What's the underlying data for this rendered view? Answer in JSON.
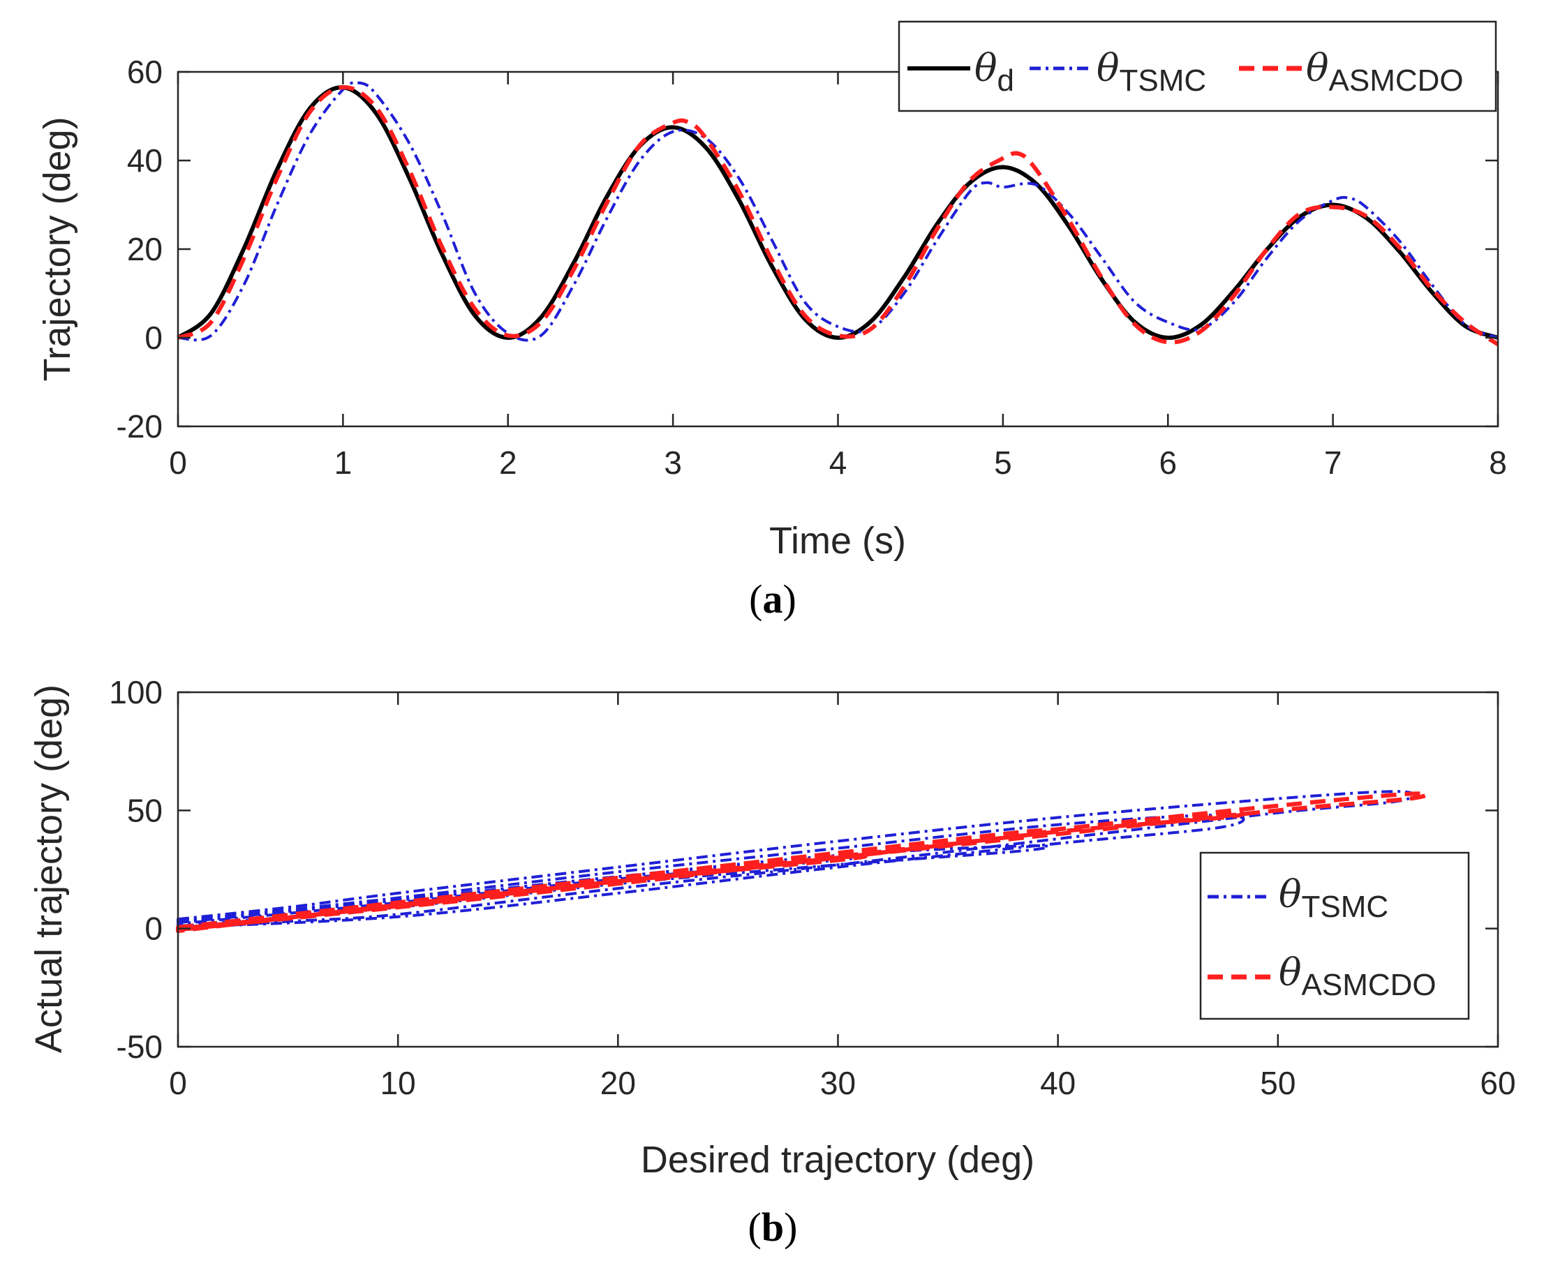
{
  "colors": {
    "desired": "#000000",
    "tsmc": "#1f1fd6",
    "asmcdo": "#ff1f1f",
    "axis": "#262626"
  },
  "legend_symbol": "θ",
  "chart_data": [
    {
      "id": "a",
      "type": "line",
      "caption": "a",
      "xlabel": "Time (s)",
      "ylabel": "Trajectory (deg)",
      "xlim": [
        0,
        8
      ],
      "ylim": [
        -20,
        60
      ],
      "xticks": [
        "0",
        "1",
        "2",
        "3",
        "4",
        "5",
        "6",
        "7",
        "8"
      ],
      "yticks": [
        "-20",
        "0",
        "20",
        "40",
        "60"
      ],
      "legend_position": "top-right",
      "legend": [
        {
          "key": "desired",
          "symbol": "θ",
          "subscript": "d",
          "style": "solid"
        },
        {
          "key": "tsmc",
          "symbol": "θ",
          "subscript": "TSMC",
          "style": "dash-dot"
        },
        {
          "key": "asmcdo",
          "symbol": "θ",
          "subscript": "ASMCDO",
          "style": "dashed"
        }
      ],
      "series": [
        {
          "key": "desired",
          "name": "θd",
          "x": [
            0,
            0.2,
            0.4,
            0.6,
            0.8,
            1.0,
            1.2,
            1.4,
            1.6,
            1.8,
            2.0,
            2.2,
            2.4,
            2.6,
            2.8,
            3.0,
            3.2,
            3.4,
            3.6,
            3.8,
            4.0,
            4.2,
            4.4,
            4.6,
            4.8,
            5.0,
            5.2,
            5.4,
            5.6,
            5.8,
            6.0,
            6.2,
            6.4,
            6.6,
            6.8,
            7.0,
            7.2,
            7.4,
            7.6,
            7.8,
            8.0
          ],
          "y": [
            0,
            5.5,
            20.2,
            37.9,
            51.8,
            56.5,
            50.7,
            36.2,
            18.9,
            5.0,
            0,
            4.6,
            17.0,
            31.9,
            43.3,
            47.5,
            42.9,
            31.1,
            16.1,
            4.2,
            0,
            3.7,
            13.6,
            25.6,
            35.0,
            38.5,
            34.8,
            25.1,
            13.1,
            3.5,
            0,
            2.9,
            10.6,
            19.9,
            27.3,
            30.0,
            27.1,
            19.6,
            10.3,
            2.7,
            0
          ]
        },
        {
          "key": "tsmc",
          "name": "θTSMC",
          "x": [
            0,
            0.2,
            0.4,
            0.6,
            0.8,
            1.0,
            1.1,
            1.2,
            1.4,
            1.6,
            1.8,
            2.0,
            2.2,
            2.4,
            2.6,
            2.8,
            3.0,
            3.2,
            3.4,
            3.6,
            3.8,
            4.0,
            4.2,
            4.4,
            4.6,
            4.8,
            4.9,
            5.0,
            5.2,
            5.4,
            5.6,
            5.8,
            6.0,
            6.2,
            6.4,
            6.6,
            6.8,
            7.0,
            7.1,
            7.2,
            7.4,
            7.6,
            7.8,
            8.0
          ],
          "y": [
            0,
            0.5,
            12.0,
            30.0,
            46.0,
            56.0,
            57.5,
            55.0,
            44.0,
            28.0,
            10.0,
            1.0,
            0.5,
            12.0,
            27.0,
            40.0,
            46.5,
            45.0,
            36.0,
            22.0,
            8.0,
            2.5,
            2.0,
            10.0,
            22.0,
            33.0,
            35.0,
            34.0,
            34.5,
            28.0,
            18.0,
            8.0,
            3.5,
            2.0,
            8.0,
            18.0,
            26.5,
            31.0,
            31.5,
            29.5,
            22.0,
            12.0,
            3.0,
            0
          ]
        },
        {
          "key": "asmcdo",
          "name": "θASMCDO",
          "x": [
            0,
            0.2,
            0.4,
            0.6,
            0.8,
            1.0,
            1.2,
            1.4,
            1.6,
            1.8,
            2.0,
            2.2,
            2.4,
            2.6,
            2.8,
            3.0,
            3.1,
            3.2,
            3.4,
            3.6,
            3.8,
            4.0,
            4.2,
            4.4,
            4.6,
            4.8,
            5.0,
            5.1,
            5.2,
            5.4,
            5.6,
            5.8,
            6.0,
            6.2,
            6.4,
            6.6,
            6.8,
            7.0,
            7.2,
            7.4,
            7.6,
            7.8,
            8.0
          ],
          "y": [
            0,
            3.5,
            18.0,
            36.0,
            51.0,
            56.5,
            52.0,
            38.0,
            20.5,
            6.5,
            0.5,
            3.5,
            15.5,
            30.5,
            43.5,
            48.5,
            48.5,
            45.0,
            33.0,
            17.5,
            5.0,
            0.5,
            2.0,
            11.5,
            24.5,
            35.5,
            40.5,
            41.5,
            38.0,
            26.5,
            13.5,
            3.0,
            -1.0,
            1.5,
            9.5,
            20.0,
            28.0,
            29.5,
            27.5,
            20.5,
            11.0,
            3.5,
            -1.5
          ]
        }
      ]
    },
    {
      "id": "b",
      "type": "line",
      "caption": "b",
      "xlabel": "Desired trajectory (deg)",
      "ylabel": "Actual trajectory  (deg)",
      "xlim": [
        0,
        60
      ],
      "ylim": [
        -50,
        100
      ],
      "xticks": [
        "0",
        "10",
        "20",
        "30",
        "40",
        "50",
        "60"
      ],
      "yticks": [
        "-50",
        "0",
        "50",
        "100"
      ],
      "legend_position": "center-right",
      "legend": [
        {
          "key": "tsmc",
          "symbol": "θ",
          "subscript": "TSMC",
          "style": "dash-dot"
        },
        {
          "key": "asmcdo",
          "symbol": "θ",
          "subscript": "ASMCDO",
          "style": "dashed"
        }
      ],
      "series": [
        {
          "key": "tsmc",
          "name": "θTSMC",
          "loops": [
            {
              "x": [
                0,
                5,
                10,
                20,
                30,
                40,
                50,
                55.5,
                55.5,
                50,
                40,
                30,
                20,
                10,
                5,
                0
              ],
              "y": [
                4,
                9,
                15,
                26,
                37,
                47,
                55,
                58,
                54,
                49,
                38,
                27,
                17,
                6,
                3,
                0
              ]
            },
            {
              "x": [
                0,
                10,
                20,
                30,
                40,
                47.5,
                47.5,
                40,
                30,
                20,
                10,
                0
              ],
              "y": [
                3,
                13,
                24,
                34,
                44,
                48,
                43,
                36,
                26,
                15,
                5,
                0.5
              ]
            },
            {
              "x": [
                0,
                10,
                20,
                30,
                38.5,
                38.5,
                30,
                20,
                10,
                0
              ],
              "y": [
                3,
                12,
                22,
                31,
                35,
                33,
                27,
                19,
                9,
                1
              ]
            },
            {
              "x": [
                0,
                10,
                20,
                30,
                30,
                20,
                10,
                0
              ],
              "y": [
                2.5,
                12,
                22,
                30,
                29,
                21,
                11,
                2
              ]
            }
          ]
        },
        {
          "key": "asmcdo",
          "name": "θASMCDO",
          "loops": [
            {
              "x": [
                0,
                10,
                20,
                30,
                40,
                50,
                56,
                56,
                50,
                40,
                30,
                20,
                10,
                0
              ],
              "y": [
                0,
                10.5,
                21,
                31.5,
                42,
                52,
                57,
                55,
                50,
                40,
                30,
                19,
                9,
                -0.5
              ]
            },
            {
              "x": [
                0,
                10,
                20,
                30,
                40,
                47.5,
                47.5,
                40,
                30,
                20,
                10,
                0
              ],
              "y": [
                0.5,
                11,
                21.5,
                32,
                42,
                48.5,
                47,
                41,
                30,
                20,
                9.5,
                0
              ]
            },
            {
              "x": [
                0,
                10,
                20,
                30,
                38.5,
                38.5,
                30,
                20,
                10,
                0
              ],
              "y": [
                0.5,
                11,
                21.5,
                32,
                41,
                39.5,
                30.5,
                20,
                9.5,
                -0.5
              ]
            },
            {
              "x": [
                0,
                10,
                20,
                30,
                30,
                20,
                10,
                0
              ],
              "y": [
                0,
                10.5,
                21,
                30,
                29,
                20,
                10,
                -1
              ]
            }
          ]
        }
      ]
    }
  ]
}
